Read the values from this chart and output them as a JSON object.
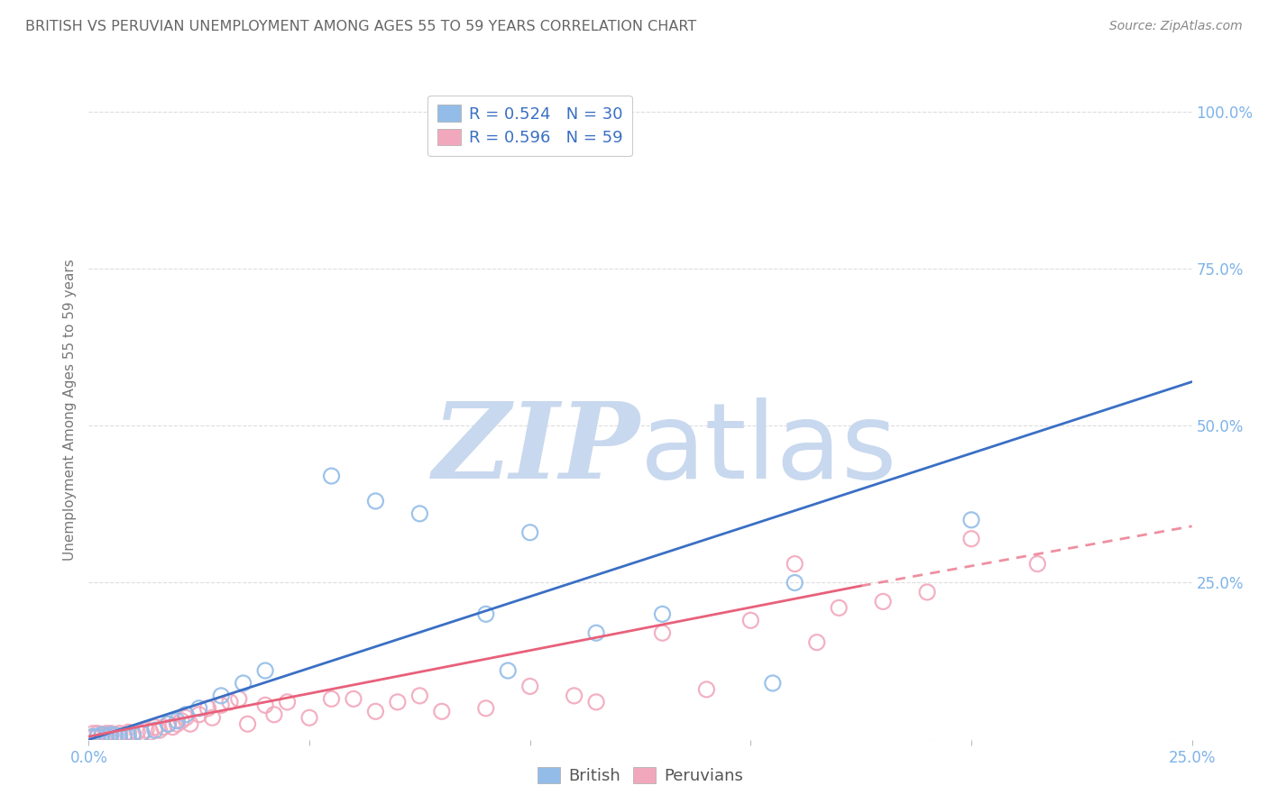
{
  "title": "BRITISH VS PERUVIAN UNEMPLOYMENT AMONG AGES 55 TO 59 YEARS CORRELATION CHART",
  "source": "Source: ZipAtlas.com",
  "ylabel": "Unemployment Among Ages 55 to 59 years",
  "xlim": [
    0.0,
    0.25
  ],
  "ylim": [
    0.0,
    1.05
  ],
  "xtick_positions": [
    0.0,
    0.05,
    0.1,
    0.15,
    0.2,
    0.25
  ],
  "xtick_labels": [
    "0.0%",
    "",
    "",
    "",
    "",
    "25.0%"
  ],
  "ytick_positions": [
    0.0,
    0.25,
    0.5,
    0.75,
    1.0
  ],
  "ytick_labels_right": [
    "",
    "25.0%",
    "50.0%",
    "75.0%",
    "100.0%"
  ],
  "british_color": "#93BDE8",
  "peruvian_color": "#F2A8BC",
  "british_line_color": "#3A6FC4",
  "peruvian_line_color": "#E8607A",
  "peruvian_line_color_dashed": "#E8A0B0",
  "watermark_zip_color": "#C8D8EE",
  "watermark_atlas_color": "#C8D8EE",
  "legend_text_color": "#3A6FC4",
  "axis_tick_color": "#7EB3E8",
  "title_color": "#666666",
  "source_color": "#888888",
  "grid_color": "#DDDDDD",
  "background_color": "#FFFFFF",
  "legend_R_british": "R = 0.524",
  "legend_N_british": "N = 30",
  "legend_R_peruvian": "R = 0.596",
  "legend_N_peruvian": "N = 59",
  "british_line_x0": 0.0,
  "british_line_y0": 0.0,
  "british_line_x1": 0.25,
  "british_line_y1": 0.57,
  "peruvian_line_solid_x0": 0.0,
  "peruvian_line_solid_y0": 0.005,
  "peruvian_line_solid_x1": 0.175,
  "peruvian_line_solid_y1": 0.245,
  "peruvian_line_dashed_x0": 0.175,
  "peruvian_line_dashed_y0": 0.245,
  "peruvian_line_dashed_x1": 0.25,
  "peruvian_line_dashed_y1": 0.34,
  "british_scatter_x": [
    0.001,
    0.002,
    0.003,
    0.004,
    0.005,
    0.006,
    0.007,
    0.008,
    0.009,
    0.01,
    0.012,
    0.015,
    0.018,
    0.02,
    0.022,
    0.025,
    0.03,
    0.035,
    0.04,
    0.055,
    0.065,
    0.075,
    0.09,
    0.095,
    0.1,
    0.115,
    0.13,
    0.155,
    0.2,
    0.16
  ],
  "british_scatter_y": [
    0.005,
    0.005,
    0.008,
    0.005,
    0.008,
    0.007,
    0.005,
    0.006,
    0.005,
    0.008,
    0.01,
    0.015,
    0.025,
    0.03,
    0.04,
    0.05,
    0.07,
    0.09,
    0.11,
    0.42,
    0.38,
    0.36,
    0.2,
    0.11,
    0.33,
    0.17,
    0.2,
    0.09,
    0.35,
    0.25
  ],
  "peruvian_scatter_x": [
    0.001,
    0.001,
    0.002,
    0.002,
    0.003,
    0.003,
    0.004,
    0.004,
    0.005,
    0.005,
    0.006,
    0.007,
    0.008,
    0.009,
    0.01,
    0.011,
    0.012,
    0.013,
    0.014,
    0.015,
    0.016,
    0.017,
    0.018,
    0.019,
    0.02,
    0.021,
    0.022,
    0.023,
    0.025,
    0.027,
    0.028,
    0.03,
    0.032,
    0.034,
    0.036,
    0.04,
    0.042,
    0.045,
    0.05,
    0.055,
    0.06,
    0.065,
    0.07,
    0.075,
    0.08,
    0.09,
    0.1,
    0.11,
    0.115,
    0.13,
    0.14,
    0.15,
    0.16,
    0.165,
    0.17,
    0.18,
    0.19,
    0.2,
    0.215
  ],
  "peruvian_scatter_y": [
    0.005,
    0.01,
    0.005,
    0.01,
    0.005,
    0.008,
    0.008,
    0.01,
    0.005,
    0.01,
    0.008,
    0.01,
    0.008,
    0.012,
    0.01,
    0.012,
    0.01,
    0.015,
    0.012,
    0.02,
    0.015,
    0.02,
    0.025,
    0.02,
    0.025,
    0.03,
    0.035,
    0.025,
    0.04,
    0.05,
    0.035,
    0.055,
    0.06,
    0.065,
    0.025,
    0.055,
    0.04,
    0.06,
    0.035,
    0.065,
    0.065,
    0.045,
    0.06,
    0.07,
    0.045,
    0.05,
    0.085,
    0.07,
    0.06,
    0.17,
    0.08,
    0.19,
    0.28,
    0.155,
    0.21,
    0.22,
    0.235,
    0.32,
    0.28
  ]
}
